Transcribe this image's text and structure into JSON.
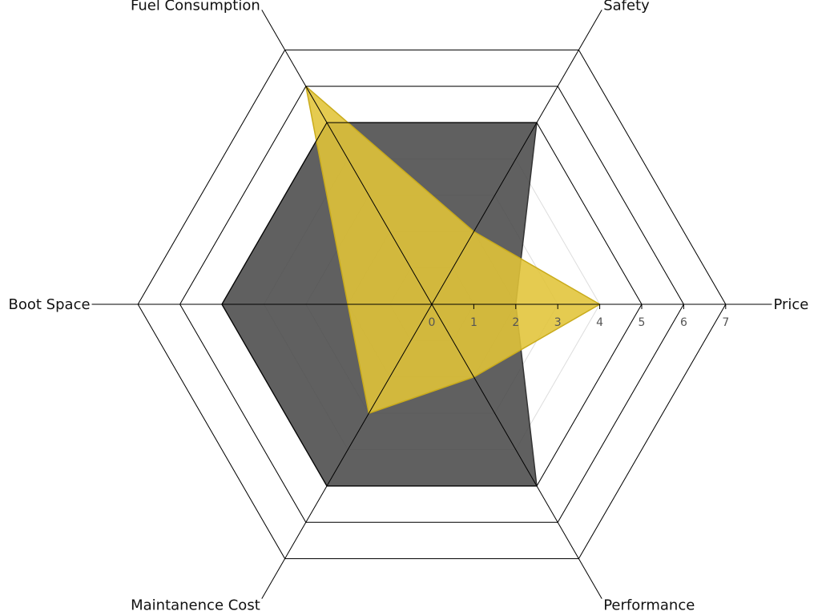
{
  "chart_data": {
    "type": "radar",
    "title": "",
    "axes": [
      "Price",
      "Safety",
      "Fuel Consumption",
      "Boot Space",
      "Maintanence Cost",
      "Performance"
    ],
    "r_ticks": [
      "0",
      "1",
      "2",
      "3",
      "4",
      "5",
      "6",
      "7"
    ],
    "r_range": [
      0,
      7
    ],
    "grid_rings": [
      0,
      1,
      2,
      3,
      4,
      5,
      6,
      7
    ],
    "grid": true,
    "legend": "none",
    "series": [
      {
        "values": [
          2,
          5,
          5,
          5,
          5,
          5
        ],
        "fill": "#4a4a4a",
        "stroke": "#333333"
      },
      {
        "values": [
          4,
          2,
          6,
          2,
          3,
          2
        ],
        "fill": "#e1c438",
        "stroke": "#c9ab1c"
      }
    ]
  }
}
